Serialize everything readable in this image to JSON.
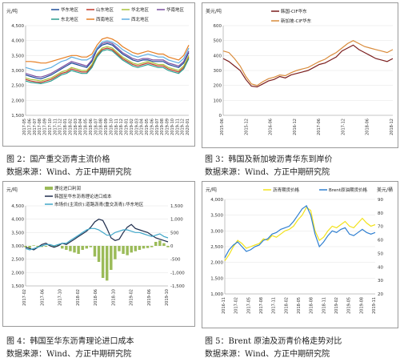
{
  "chart_data": [
    {
      "type": "line",
      "unit": "元/吨",
      "ylim": [
        1500,
        4500
      ],
      "yticks": [
        "4,500",
        "4,000",
        "3,500",
        "3,000",
        "2,500",
        "2,000",
        "1,500"
      ],
      "xticks": [
        "2017-05",
        "2017-06",
        "2017-07",
        "2017-08",
        "2017-09",
        "2017-10",
        "2017-11",
        "2017-12",
        "2018-01",
        "2018-02",
        "2018-03",
        "2018-04",
        "2018-05",
        "2018-06",
        "2018-07",
        "2018-08",
        "2018-09",
        "2018-10",
        "2018-11",
        "2018-12",
        "2019-01",
        "2019-02",
        "2019-03",
        "2019-04",
        "2019-05",
        "2019-06",
        "2019-07",
        "2019-08",
        "2019-09",
        "2019-10",
        "2019-11",
        "2019-12",
        "2020-01"
      ],
      "series": [
        {
          "name": "华东地区",
          "color": "#1f4e9a",
          "values": [
            2850,
            2800,
            2750,
            2720,
            2780,
            2850,
            2950,
            3050,
            3150,
            3250,
            3200,
            3150,
            3100,
            3300,
            3700,
            3850,
            3900,
            3850,
            3700,
            3550,
            3450,
            3350,
            3300,
            3350,
            3350,
            3300,
            3300,
            3300,
            3200,
            3150,
            3100,
            3250,
            3600
          ]
        },
        {
          "name": "山东地区",
          "color": "#c0392b",
          "values": [
            2700,
            2650,
            2620,
            2600,
            2650,
            2700,
            2800,
            2900,
            2950,
            3050,
            3000,
            2950,
            2950,
            3150,
            3500,
            3700,
            3750,
            3700,
            3550,
            3400,
            3300,
            3200,
            3150,
            3200,
            3250,
            3200,
            3150,
            3150,
            3050,
            3000,
            2950,
            3100,
            3450
          ]
        },
        {
          "name": "华北地区",
          "color": "#a8c33a",
          "values": [
            2750,
            2700,
            2680,
            2650,
            2700,
            2750,
            2850,
            2950,
            3000,
            3100,
            3050,
            3000,
            3000,
            3200,
            3550,
            3750,
            3800,
            3750,
            3600,
            3450,
            3350,
            3250,
            3200,
            3250,
            3300,
            3250,
            3200,
            3200,
            3100,
            3050,
            3000,
            3150,
            3500
          ]
        },
        {
          "name": "华南地区",
          "color": "#7b4fa0",
          "values": [
            2900,
            2850,
            2800,
            2780,
            2830,
            2900,
            3000,
            3100,
            3200,
            3300,
            3250,
            3200,
            3150,
            3350,
            3750,
            3900,
            3950,
            3900,
            3750,
            3600,
            3500,
            3400,
            3350,
            3400,
            3400,
            3350,
            3350,
            3350,
            3250,
            3200,
            3150,
            3300,
            3650
          ]
        },
        {
          "name": "东北地区",
          "color": "#2a9d8f",
          "values": [
            2650,
            2600,
            2580,
            2560,
            2600,
            2650,
            2750,
            2850,
            2900,
            3000,
            2950,
            2900,
            2900,
            3100,
            3450,
            3650,
            3700,
            3650,
            3500,
            3350,
            3250,
            3150,
            3100,
            3150,
            3200,
            3150,
            3100,
            3100,
            3000,
            2950,
            2900,
            3050,
            3400
          ]
        },
        {
          "name": "西南地区",
          "color": "#e67e22",
          "values": [
            3300,
            3300,
            3280,
            3250,
            3250,
            3300,
            3350,
            3400,
            3450,
            3500,
            3500,
            3450,
            3450,
            3550,
            3850,
            4050,
            4100,
            4050,
            3950,
            3800,
            3700,
            3600,
            3550,
            3600,
            3650,
            3600,
            3550,
            3550,
            3450,
            3400,
            3350,
            3500,
            3850
          ]
        },
        {
          "name": "西北地区",
          "color": "#5dade2",
          "values": [
            3100,
            3050,
            3000,
            3000,
            3050,
            3100,
            3200,
            3300,
            3350,
            3450,
            3400,
            3350,
            3350,
            3450,
            3750,
            3950,
            4000,
            3950,
            3850,
            3700,
            3600,
            3500,
            3450,
            3500,
            3550,
            3500,
            3450,
            3450,
            3350,
            3300,
            3250,
            3400,
            3750
          ]
        }
      ]
    },
    {
      "type": "line",
      "unit": "美元/吨",
      "ylim": [
        0,
        600
      ],
      "yticks": [
        "600",
        "500",
        "400",
        "300",
        "200",
        "100",
        "0"
      ],
      "xticks": [
        "2015-06",
        "2015-12",
        "2016-06",
        "2016-12",
        "2017-06",
        "2017-12",
        "2018-06",
        "2018-12"
      ],
      "series": [
        {
          "name": "韩国-CIF华东",
          "color": "#7b1e1e",
          "values": [
            380,
            360,
            330,
            300,
            240,
            195,
            190,
            210,
            230,
            240,
            260,
            250,
            270,
            280,
            290,
            300,
            320,
            340,
            350,
            370,
            390,
            430,
            450,
            470,
            440,
            420,
            400,
            380,
            370,
            360,
            380
          ]
        },
        {
          "name": "新加坡-CIF华东",
          "color": "#d98b3a",
          "values": [
            430,
            420,
            380,
            330,
            260,
            210,
            200,
            225,
            245,
            255,
            270,
            265,
            285,
            300,
            310,
            320,
            340,
            360,
            375,
            400,
            420,
            450,
            480,
            500,
            480,
            460,
            450,
            440,
            430,
            420,
            440
          ]
        }
      ]
    },
    {
      "type": "line",
      "unit": "元/吨",
      "ylim": [
        1500,
        4500
      ],
      "yticks": [
        "4,500",
        "4,000",
        "3,500",
        "3,000",
        "2,500",
        "2,000",
        "1,500"
      ],
      "y2ticks": [
        "1,500",
        "1,000",
        "500",
        "0",
        "-500",
        "-1,000",
        "-1,500"
      ],
      "xticks": [
        "2017-02",
        "2017-06",
        "2017-10",
        "2018-02",
        "2018-06",
        "2018-10",
        "2019-02",
        "2019-06",
        "2019-10"
      ],
      "series": [
        {
          "name": "理论进口利润",
          "color": "#9bbb59",
          "kind": "bar",
          "axis": "right",
          "values": [
            -50,
            -80,
            20,
            -60,
            -40,
            -30,
            20,
            -60,
            50,
            -100,
            -150,
            -200,
            -250,
            -300,
            -150,
            -100,
            -50,
            -400,
            -600,
            -1200,
            -1300,
            -900,
            -500,
            -200,
            -300,
            -350,
            -250,
            -200,
            -150,
            -100,
            -80,
            -50,
            150,
            200,
            100,
            -50
          ]
        },
        {
          "name": "韩国至华东沥青理论进口成本",
          "color": "#1f2d4d",
          "values": [
            2950,
            2900,
            2850,
            2950,
            3050,
            3100,
            3000,
            2950,
            3000,
            3100,
            3050,
            3150,
            3250,
            3350,
            3450,
            3550,
            3700,
            3900,
            4000,
            3950,
            3650,
            3300,
            3200,
            3250,
            3500,
            3700,
            3800,
            3650,
            3600,
            3550,
            3500,
            3400,
            3300,
            3250,
            3200,
            3150
          ]
        },
        {
          "name": "市场价(主流价):道路沥青(重交沥青):华东地区",
          "color": "#3fa7c9",
          "values": [
            2900,
            2850,
            2900,
            2950,
            3000,
            3050,
            3050,
            3000,
            3050,
            3100,
            3100,
            3200,
            3300,
            3400,
            3500,
            3600,
            3650,
            3650,
            3600,
            3500,
            3400,
            3400,
            3500,
            3550,
            3600,
            3600,
            3550,
            3500,
            3500,
            3450,
            3400,
            3350,
            3400,
            3450,
            3350,
            3300
          ]
        }
      ]
    },
    {
      "type": "line",
      "unit": "元/吨",
      "unit2": "美元/桶",
      "ylim": [
        1000,
        4000
      ],
      "yticks": [
        "4,000",
        "3,500",
        "3,000",
        "2,500",
        "2,000",
        "1,500",
        "1,000"
      ],
      "y2ticks": [
        "90",
        "80",
        "70",
        "60",
        "50",
        "40",
        "30",
        "20"
      ],
      "xticks": [
        "2016-11",
        "2017-02",
        "2017-05",
        "2017-08",
        "2017-11",
        "2018-02",
        "2018-05",
        "2018-08",
        "2018-11",
        "2019-02",
        "2019-05",
        "2019-08",
        "2019-11"
      ],
      "series": [
        {
          "name": "沥青期货价格",
          "color": "#f2e21b",
          "values": [
            2050,
            2250,
            2500,
            2700,
            2600,
            2450,
            2500,
            2550,
            2600,
            2750,
            2700,
            2850,
            2800,
            2900,
            3000,
            3050,
            3150,
            3350,
            3500,
            3750,
            3650,
            3000,
            2700,
            2800,
            3000,
            3150,
            3100,
            3200,
            3300,
            3150,
            3100,
            3250,
            3400,
            3250,
            3150,
            3200
          ]
        },
        {
          "name": "Brent原油期货价格",
          "color": "#2f7fd1",
          "values": [
            2150,
            2400,
            2550,
            2650,
            2500,
            2350,
            2400,
            2500,
            2550,
            2700,
            2750,
            2900,
            2950,
            3050,
            3100,
            3150,
            3300,
            3500,
            3700,
            3800,
            3500,
            2900,
            2500,
            2650,
            2850,
            3000,
            2950,
            3050,
            3100,
            2900,
            2850,
            2950,
            3050,
            2950,
            2900,
            2950
          ]
        }
      ]
    }
  ],
  "captions": {
    "fig2": "图 2：国产重交沥青主流价格",
    "fig3": "图 3：韩国及新加坡沥青华东到岸价",
    "fig4": "图 4：韩国至华东沥青理论进口成本",
    "fig5": "图 5：Brent 原油及沥青价格走势对比",
    "source": "数据来源：Wind、方正中期研究院"
  }
}
